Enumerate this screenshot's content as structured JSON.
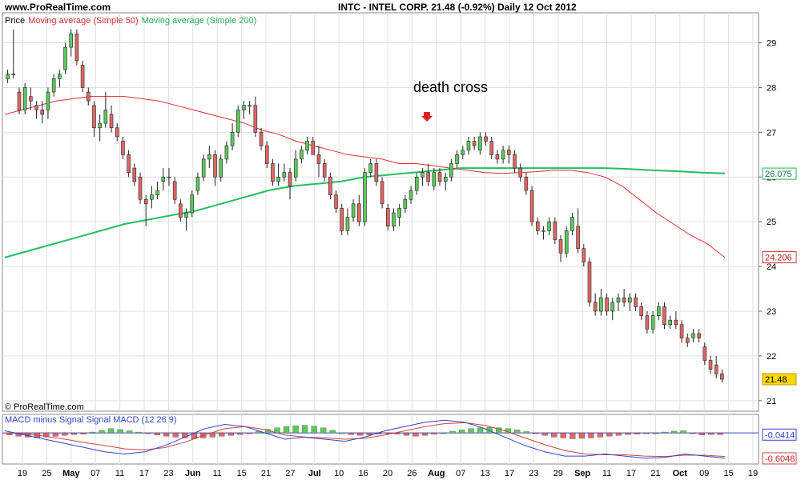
{
  "header": {
    "site": "www.ProRealTime.com",
    "quote": "INTC - INTEL CORP.    21.48 (-0.92%)    Daily  12 Oct 2012"
  },
  "legend": {
    "price": "Price",
    "ma50": "Moving average (Simple 50)",
    "ma200": "Moving average (Simple 200)"
  },
  "macd_legend": "MACD minus Signal Signal MACD (12 26 9)",
  "copyright": "© ProRealTime.com",
  "annotation": "death cross",
  "colors": {
    "up": "#5cc95c",
    "down": "#e06666",
    "ma50": "#e03030",
    "ma200": "#22c060",
    "macd": "#3344cc",
    "signal": "#cc4444",
    "grid": "#e0e0e0"
  },
  "chart_data": [
    {
      "type": "candlestick",
      "ylim": [
        20.8,
        29.6
      ],
      "yticks": [
        21,
        22,
        23,
        24,
        25,
        26,
        27,
        28,
        29
      ],
      "xticks": [
        "19",
        "25",
        "May",
        "07",
        "11",
        "17",
        "23",
        "Jun",
        "11",
        "15",
        "21",
        "27",
        "Jul",
        "10",
        "16",
        "20",
        "26",
        "Aug",
        "07",
        "13",
        "17",
        "23",
        "29",
        "Sep",
        "11",
        "17",
        "21",
        "Oct",
        "09",
        "15",
        "19"
      ],
      "grid": true,
      "last_price": "21.48",
      "ma50_last": "24.206",
      "ma200_last": "26.075",
      "candles": [
        [
          28.2,
          28.4,
          28.1,
          28.3
        ],
        [
          28.3,
          29.3,
          28.2,
          28.3
        ],
        [
          27.9,
          28.0,
          27.4,
          27.5
        ],
        [
          27.5,
          28.1,
          27.4,
          28.0
        ],
        [
          27.8,
          28.0,
          27.5,
          27.7
        ],
        [
          27.6,
          27.7,
          27.3,
          27.5
        ],
        [
          27.5,
          27.7,
          27.2,
          27.4
        ],
        [
          27.5,
          28.0,
          27.3,
          27.9
        ],
        [
          27.9,
          28.3,
          27.8,
          28.2
        ],
        [
          28.2,
          28.4,
          28.0,
          28.3
        ],
        [
          28.4,
          29.0,
          28.3,
          28.9
        ],
        [
          28.9,
          29.3,
          28.7,
          29.2
        ],
        [
          29.2,
          29.3,
          28.5,
          28.6
        ],
        [
          28.5,
          28.6,
          27.9,
          28.0
        ],
        [
          27.9,
          28.0,
          27.6,
          27.7
        ],
        [
          27.6,
          27.7,
          26.9,
          27.1
        ],
        [
          27.1,
          27.4,
          26.8,
          27.2
        ],
        [
          27.2,
          27.9,
          27.1,
          27.5
        ],
        [
          27.4,
          27.6,
          27.0,
          27.1
        ],
        [
          27.1,
          27.2,
          26.8,
          26.9
        ],
        [
          26.8,
          26.9,
          26.4,
          26.5
        ],
        [
          26.5,
          26.6,
          26.0,
          26.1
        ],
        [
          26.2,
          26.3,
          25.8,
          25.9
        ],
        [
          26.0,
          26.1,
          25.4,
          25.5
        ],
        [
          25.5,
          25.6,
          24.9,
          25.4
        ],
        [
          25.5,
          25.8,
          25.3,
          25.6
        ],
        [
          25.6,
          25.9,
          25.5,
          25.7
        ],
        [
          25.9,
          26.2,
          25.7,
          26.0
        ],
        [
          26.0,
          26.2,
          25.8,
          26.0
        ],
        [
          25.9,
          26.0,
          25.4,
          25.5
        ],
        [
          25.4,
          25.5,
          25.0,
          25.1
        ],
        [
          25.1,
          25.3,
          24.8,
          25.2
        ],
        [
          25.2,
          25.7,
          25.1,
          25.6
        ],
        [
          25.7,
          26.1,
          25.6,
          26.0
        ],
        [
          26.0,
          26.5,
          25.9,
          26.4
        ],
        [
          26.4,
          26.7,
          26.2,
          26.5
        ],
        [
          26.5,
          26.6,
          25.8,
          26.0
        ],
        [
          26.0,
          26.5,
          25.9,
          26.4
        ],
        [
          26.4,
          26.8,
          26.3,
          26.7
        ],
        [
          26.7,
          27.2,
          26.6,
          27.0
        ],
        [
          27.0,
          27.6,
          26.9,
          27.5
        ],
        [
          27.5,
          27.7,
          27.3,
          27.6
        ],
        [
          27.6,
          27.7,
          27.4,
          27.6
        ],
        [
          27.6,
          27.8,
          26.9,
          27.0
        ],
        [
          27.0,
          27.1,
          26.6,
          26.7
        ],
        [
          26.7,
          26.8,
          26.2,
          26.3
        ],
        [
          26.3,
          26.4,
          25.8,
          25.9
        ],
        [
          25.9,
          26.3,
          25.8,
          26.0
        ],
        [
          26.0,
          26.3,
          25.9,
          26.1
        ],
        [
          26.1,
          26.2,
          25.5,
          25.8
        ],
        [
          26.0,
          26.6,
          25.9,
          26.4
        ],
        [
          26.4,
          26.7,
          26.3,
          26.6
        ],
        [
          26.6,
          26.9,
          26.5,
          26.8
        ],
        [
          26.8,
          26.9,
          26.5,
          26.5
        ],
        [
          26.5,
          26.7,
          26.0,
          26.3
        ],
        [
          26.3,
          26.4,
          25.9,
          26.0
        ],
        [
          26.0,
          26.1,
          25.5,
          25.6
        ],
        [
          25.6,
          25.7,
          25.2,
          25.3
        ],
        [
          25.3,
          25.4,
          24.7,
          24.8
        ],
        [
          24.8,
          25.3,
          24.7,
          25.1
        ],
        [
          25.1,
          25.5,
          25.0,
          25.4
        ],
        [
          25.4,
          25.6,
          24.9,
          25.0
        ],
        [
          25.0,
          26.2,
          24.9,
          26.1
        ],
        [
          26.1,
          26.4,
          26.0,
          26.3
        ],
        [
          26.3,
          26.4,
          25.8,
          25.9
        ],
        [
          25.9,
          26.0,
          25.3,
          25.4
        ],
        [
          25.3,
          25.4,
          24.8,
          24.9
        ],
        [
          24.9,
          25.3,
          24.8,
          25.2
        ],
        [
          25.1,
          25.4,
          24.9,
          25.3
        ],
        [
          25.3,
          25.6,
          25.2,
          25.5
        ],
        [
          25.5,
          25.8,
          25.4,
          25.7
        ],
        [
          25.7,
          26.1,
          25.6,
          26.0
        ],
        [
          26.0,
          26.2,
          25.8,
          26.1
        ],
        [
          26.1,
          26.3,
          25.8,
          25.9
        ],
        [
          25.8,
          26.2,
          25.7,
          26.1
        ],
        [
          26.1,
          26.2,
          25.8,
          25.9
        ],
        [
          25.9,
          26.1,
          25.7,
          26.0
        ],
        [
          26.0,
          26.4,
          25.9,
          26.3
        ],
        [
          26.3,
          26.6,
          26.2,
          26.5
        ],
        [
          26.5,
          26.7,
          26.4,
          26.6
        ],
        [
          26.6,
          26.9,
          26.5,
          26.8
        ],
        [
          26.8,
          26.9,
          26.6,
          26.7
        ],
        [
          26.6,
          27.0,
          26.5,
          26.9
        ],
        [
          26.9,
          27.0,
          26.7,
          26.8
        ],
        [
          26.8,
          26.9,
          26.4,
          26.5
        ],
        [
          26.5,
          26.6,
          26.3,
          26.4
        ],
        [
          26.4,
          26.7,
          26.3,
          26.6
        ],
        [
          26.6,
          26.7,
          26.3,
          26.5
        ],
        [
          26.5,
          26.6,
          26.1,
          26.2
        ],
        [
          26.2,
          26.3,
          25.9,
          26.0
        ],
        [
          26.0,
          26.1,
          25.6,
          25.7
        ],
        [
          25.7,
          25.8,
          24.9,
          25.0
        ],
        [
          25.0,
          25.1,
          24.7,
          24.8
        ],
        [
          24.8,
          24.9,
          24.6,
          24.8
        ],
        [
          24.8,
          25.1,
          24.7,
          25.0
        ],
        [
          25.0,
          25.1,
          24.5,
          24.6
        ],
        [
          24.6,
          24.7,
          24.1,
          24.3
        ],
        [
          24.3,
          24.9,
          24.2,
          24.8
        ],
        [
          24.8,
          25.2,
          24.7,
          25.1
        ],
        [
          24.9,
          25.3,
          24.3,
          24.4
        ],
        [
          24.4,
          24.5,
          24.0,
          24.1
        ],
        [
          24.1,
          24.2,
          23.1,
          23.2
        ],
        [
          23.2,
          23.4,
          22.9,
          23.0
        ],
        [
          23.0,
          23.5,
          22.9,
          23.3
        ],
        [
          23.3,
          23.4,
          22.9,
          23.0
        ],
        [
          23.0,
          23.3,
          22.8,
          23.2
        ],
        [
          23.2,
          23.4,
          23.0,
          23.3
        ],
        [
          23.3,
          23.5,
          23.1,
          23.2
        ],
        [
          23.2,
          23.4,
          23.0,
          23.3
        ],
        [
          23.3,
          23.4,
          23.0,
          23.1
        ],
        [
          23.1,
          23.2,
          22.8,
          22.9
        ],
        [
          22.9,
          23.0,
          22.5,
          22.6
        ],
        [
          22.6,
          23.0,
          22.5,
          22.9
        ],
        [
          22.9,
          23.2,
          22.8,
          23.1
        ],
        [
          23.1,
          23.2,
          22.6,
          22.7
        ],
        [
          22.7,
          22.9,
          22.6,
          22.8
        ],
        [
          22.8,
          23.0,
          22.6,
          22.7
        ],
        [
          22.7,
          22.8,
          22.3,
          22.4
        ],
        [
          22.4,
          22.5,
          22.2,
          22.3
        ],
        [
          22.4,
          22.6,
          22.3,
          22.5
        ],
        [
          22.5,
          22.6,
          22.3,
          22.4
        ],
        [
          22.2,
          22.3,
          21.8,
          21.9
        ],
        [
          21.9,
          22.0,
          21.6,
          21.7
        ],
        [
          21.8,
          22.0,
          21.5,
          21.6
        ],
        [
          21.6,
          21.7,
          21.4,
          21.48
        ]
      ],
      "ma50": [
        27.4,
        27.5,
        27.6,
        27.7,
        27.75,
        27.8,
        27.8,
        27.8,
        27.75,
        27.7,
        27.6,
        27.5,
        27.4,
        27.3,
        27.2,
        27.05,
        26.95,
        26.8,
        26.7,
        26.6,
        26.5,
        26.45,
        26.4,
        26.3,
        26.3,
        26.25,
        26.2,
        26.15,
        26.1,
        26.08,
        26.1,
        26.12,
        26.15,
        26.15,
        26.1,
        26.0,
        25.8,
        25.5,
        25.2,
        24.95,
        24.7,
        24.5,
        24.2
      ],
      "ma200": [
        24.2,
        24.35,
        24.5,
        24.65,
        24.8,
        24.95,
        25.05,
        25.15,
        25.25,
        25.4,
        25.55,
        25.7,
        25.8,
        25.85,
        25.9,
        26.0,
        26.05,
        26.1,
        26.15,
        26.2,
        26.2,
        26.2,
        26.2,
        26.2,
        26.2,
        26.2,
        26.18,
        26.15,
        26.13,
        26.1,
        26.08
      ]
    },
    {
      "type": "bar+line",
      "title": "MACD minus Signal Signal MACD (12 26 9)",
      "ylim": [
        -0.7,
        0.4
      ],
      "labels": [
        "-0.0414",
        "-0.6048"
      ],
      "histogram": [
        -0.05,
        -0.08,
        -0.1,
        -0.12,
        -0.1,
        -0.08,
        -0.06,
        -0.04,
        -0.03,
        0.02,
        0.06,
        0.1,
        0.08,
        0.05,
        0.02,
        -0.02,
        -0.05,
        -0.08,
        -0.1,
        -0.12,
        -0.14,
        -0.12,
        -0.1,
        -0.08,
        -0.06,
        -0.04,
        -0.02,
        0.04,
        0.08,
        0.12,
        0.15,
        0.17,
        0.18,
        0.16,
        0.12,
        0.06,
        0.0,
        -0.04,
        -0.06,
        -0.05,
        -0.03,
        -0.02,
        -0.03,
        -0.06,
        -0.08,
        -0.06,
        -0.03,
        0.0,
        0.04,
        0.07,
        0.1,
        0.12,
        0.13,
        0.12,
        0.1,
        0.07,
        0.03,
        -0.02,
        -0.06,
        -0.1,
        -0.12,
        -0.14,
        -0.13,
        -0.12,
        -0.1,
        -0.08,
        -0.06,
        -0.04,
        -0.03,
        -0.02,
        -0.01,
        0.02,
        0.04,
        0.05,
        -0.02,
        -0.05,
        -0.04,
        -0.04
      ],
      "macd": [
        0.05,
        -0.05,
        -0.15,
        -0.25,
        -0.35,
        -0.45,
        -0.5,
        -0.45,
        -0.3,
        -0.1,
        0.1,
        0.2,
        0.15,
        0.0,
        -0.15,
        -0.1,
        -0.15,
        -0.2,
        -0.1,
        0.05,
        0.15,
        0.25,
        0.3,
        0.25,
        0.1,
        -0.1,
        -0.3,
        -0.45,
        -0.55,
        -0.55,
        -0.5,
        -0.55,
        -0.6,
        -0.58,
        -0.5,
        -0.55,
        -0.6
      ],
      "signal": [
        0.0,
        -0.02,
        -0.08,
        -0.15,
        -0.23,
        -0.3,
        -0.38,
        -0.4,
        -0.35,
        -0.22,
        -0.05,
        0.1,
        0.15,
        0.08,
        -0.05,
        -0.1,
        -0.12,
        -0.15,
        -0.13,
        -0.05,
        0.05,
        0.15,
        0.22,
        0.24,
        0.18,
        0.05,
        -0.12,
        -0.28,
        -0.42,
        -0.5,
        -0.52,
        -0.52,
        -0.55,
        -0.56,
        -0.53,
        -0.53,
        -0.56
      ]
    }
  ]
}
